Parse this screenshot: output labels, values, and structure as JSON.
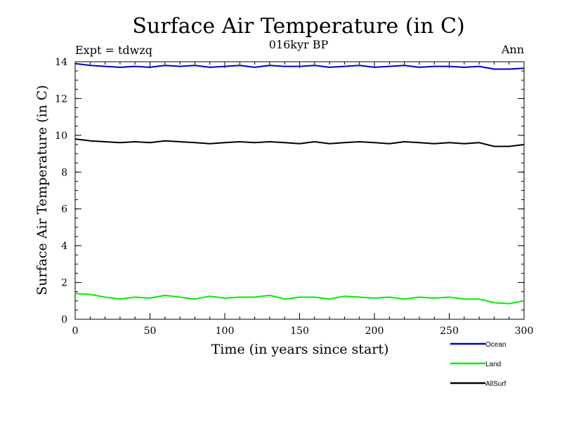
{
  "chart_data": {
    "type": "line",
    "title": "Surface Air Temperature (in C)",
    "subtitle": "016kyr BP",
    "left_label": "Expt = tdwzq",
    "right_label": "Ann",
    "xlabel": "Time (in years since start)",
    "ylabel": "Surface Air Temperature (in C)",
    "xlim": [
      0,
      300
    ],
    "ylim": [
      0,
      14
    ],
    "x_ticks": [
      0,
      50,
      100,
      150,
      200,
      250,
      300
    ],
    "y_ticks": [
      0,
      2,
      4,
      6,
      8,
      10,
      12,
      14
    ],
    "grid": false,
    "legend_position": "bottom-right",
    "series": [
      {
        "name": "Ocean",
        "color": "#0000cc",
        "x": [
          0,
          10,
          20,
          30,
          40,
          50,
          60,
          70,
          80,
          90,
          100,
          110,
          120,
          130,
          140,
          150,
          160,
          170,
          180,
          190,
          200,
          210,
          220,
          230,
          240,
          250,
          260,
          270,
          280,
          290,
          300
        ],
        "values": [
          13.9,
          13.8,
          13.75,
          13.7,
          13.75,
          13.7,
          13.8,
          13.75,
          13.8,
          13.7,
          13.75,
          13.8,
          13.7,
          13.8,
          13.75,
          13.75,
          13.8,
          13.7,
          13.75,
          13.8,
          13.7,
          13.75,
          13.8,
          13.7,
          13.75,
          13.75,
          13.7,
          13.75,
          13.6,
          13.6,
          13.65
        ]
      },
      {
        "name": "Land",
        "color": "#00ee00",
        "x": [
          0,
          10,
          20,
          30,
          40,
          50,
          60,
          70,
          80,
          90,
          100,
          110,
          120,
          130,
          140,
          150,
          160,
          170,
          180,
          190,
          200,
          210,
          220,
          230,
          240,
          250,
          260,
          270,
          280,
          290,
          300
        ],
        "values": [
          1.4,
          1.35,
          1.2,
          1.1,
          1.2,
          1.15,
          1.3,
          1.2,
          1.1,
          1.25,
          1.15,
          1.2,
          1.2,
          1.3,
          1.1,
          1.2,
          1.2,
          1.1,
          1.25,
          1.2,
          1.15,
          1.2,
          1.1,
          1.2,
          1.15,
          1.2,
          1.1,
          1.1,
          0.9,
          0.85,
          1.0
        ]
      },
      {
        "name": "AllSurf",
        "color": "#000000",
        "x": [
          0,
          10,
          20,
          30,
          40,
          50,
          60,
          70,
          80,
          90,
          100,
          110,
          120,
          130,
          140,
          150,
          160,
          170,
          180,
          190,
          200,
          210,
          220,
          230,
          240,
          250,
          260,
          270,
          280,
          290,
          300
        ],
        "values": [
          9.8,
          9.7,
          9.65,
          9.6,
          9.65,
          9.6,
          9.7,
          9.65,
          9.6,
          9.55,
          9.6,
          9.65,
          9.6,
          9.65,
          9.6,
          9.55,
          9.65,
          9.55,
          9.6,
          9.65,
          9.6,
          9.55,
          9.65,
          9.6,
          9.55,
          9.6,
          9.55,
          9.6,
          9.4,
          9.4,
          9.5
        ]
      }
    ]
  }
}
